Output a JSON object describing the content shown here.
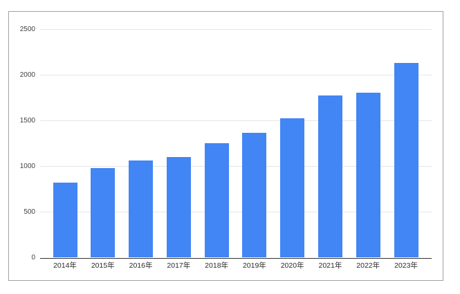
{
  "chart_data": {
    "type": "bar",
    "categories": [
      "2014年",
      "2015年",
      "2016年",
      "2017年",
      "2018年",
      "2019年",
      "2020年",
      "2021年",
      "2022年",
      "2023年"
    ],
    "values": [
      820,
      980,
      1060,
      1100,
      1250,
      1360,
      1520,
      1770,
      1800,
      2130
    ],
    "title": "",
    "xlabel": "",
    "ylabel": "",
    "ylim": [
      0,
      2500
    ],
    "ytick_interval": 500,
    "ytick_labels": [
      "0",
      "500",
      "1000",
      "1500",
      "2000",
      "2500"
    ],
    "grid": true,
    "legend_position": "none",
    "bar_color": "#4285f4",
    "gridline_color": "#e6e6e6",
    "axis_line_color": "#333333",
    "background_color": "#ffffff",
    "card_border_color": "#a2a2a2"
  }
}
